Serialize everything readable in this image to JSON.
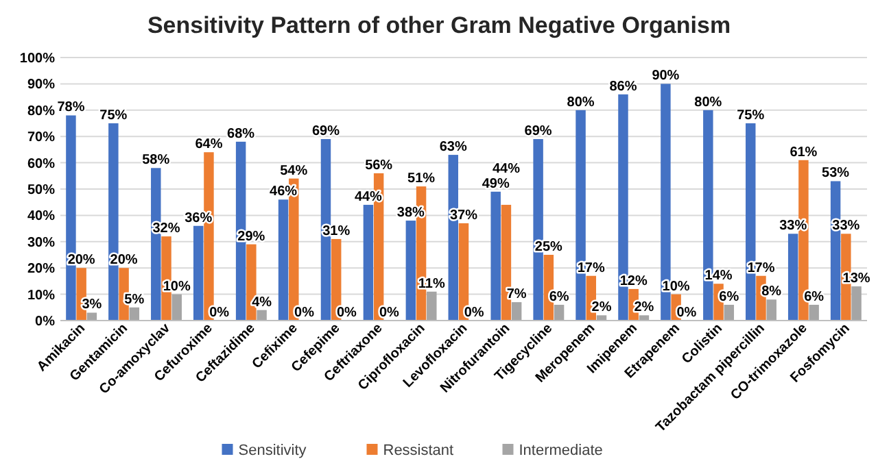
{
  "chart_data": {
    "type": "bar",
    "title": "Sensitivity Pattern of other Gram Negative Organism",
    "categories": [
      "Amikacin",
      "Gentamicin",
      "Co-amoxyclav",
      "Cefuroxime",
      "Ceftazidime",
      "Cefixime",
      "Cefepime",
      "Ceftriaxone",
      "Ciprofloxacin",
      "Levofloxacin",
      "Nitrofurantoin",
      "Tigecycline",
      "Meropenem",
      "Imipenem",
      "Etrapenem",
      "Colistin",
      "Tazobactam pipercillin",
      "CO-trimoxazole",
      "Fosfomycin"
    ],
    "series": [
      {
        "name": "Sensitivity",
        "color": "#4472c4",
        "values": [
          78,
          75,
          58,
          36,
          68,
          46,
          69,
          44,
          38,
          63,
          49,
          69,
          80,
          86,
          90,
          80,
          75,
          33,
          53
        ],
        "value_labels": [
          "78%",
          "75%",
          "58%",
          "36%",
          "68%",
          "46%",
          "69%",
          "44%",
          "38%",
          "63%",
          "49%",
          "69%",
          "80%",
          "86%",
          "90%",
          "80%",
          "75%",
          "33%",
          "53%"
        ]
      },
      {
        "name": "Ressistant",
        "color": "#ed7d31",
        "values": [
          20,
          20,
          32,
          64,
          29,
          54,
          31,
          56,
          51,
          37,
          44,
          25,
          17,
          12,
          10,
          14,
          17,
          61,
          33
        ],
        "value_labels": [
          "20%",
          "20%",
          "32%",
          "64%",
          "29%",
          "54%",
          "31%",
          "56%",
          "51%",
          "37%",
          "44%",
          "25%",
          "17%",
          "12%",
          "10%",
          "14%",
          "17%",
          "61%",
          "33%"
        ]
      },
      {
        "name": "Intermediate",
        "color": "#a5a5a5",
        "values": [
          3,
          5,
          10,
          0,
          4,
          0,
          0,
          0,
          11,
          0,
          7,
          6,
          2,
          2,
          0,
          6,
          8,
          6,
          13
        ],
        "value_labels": [
          "3%",
          "5%",
          "10%",
          "0%",
          "4%",
          "0%",
          "0%",
          "0%",
          "11%",
          "0%",
          "7%",
          "6%",
          "2%",
          "2%",
          "0%",
          "6%",
          "8%",
          "6%",
          "13%"
        ]
      }
    ],
    "ylim": [
      0,
      100
    ],
    "yticks": [
      {
        "value": 0,
        "label": "0%"
      },
      {
        "value": 10,
        "label": "10%"
      },
      {
        "value": 20,
        "label": "20%"
      },
      {
        "value": 30,
        "label": "30%"
      },
      {
        "value": 40,
        "label": "40%"
      },
      {
        "value": 50,
        "label": "50%"
      },
      {
        "value": 60,
        "label": "60%"
      },
      {
        "value": 70,
        "label": "70%"
      },
      {
        "value": 80,
        "label": "80%"
      },
      {
        "value": 90,
        "label": "90%"
      },
      {
        "value": 100,
        "label": "100%"
      }
    ],
    "grid": "y",
    "legend": "bottom"
  }
}
